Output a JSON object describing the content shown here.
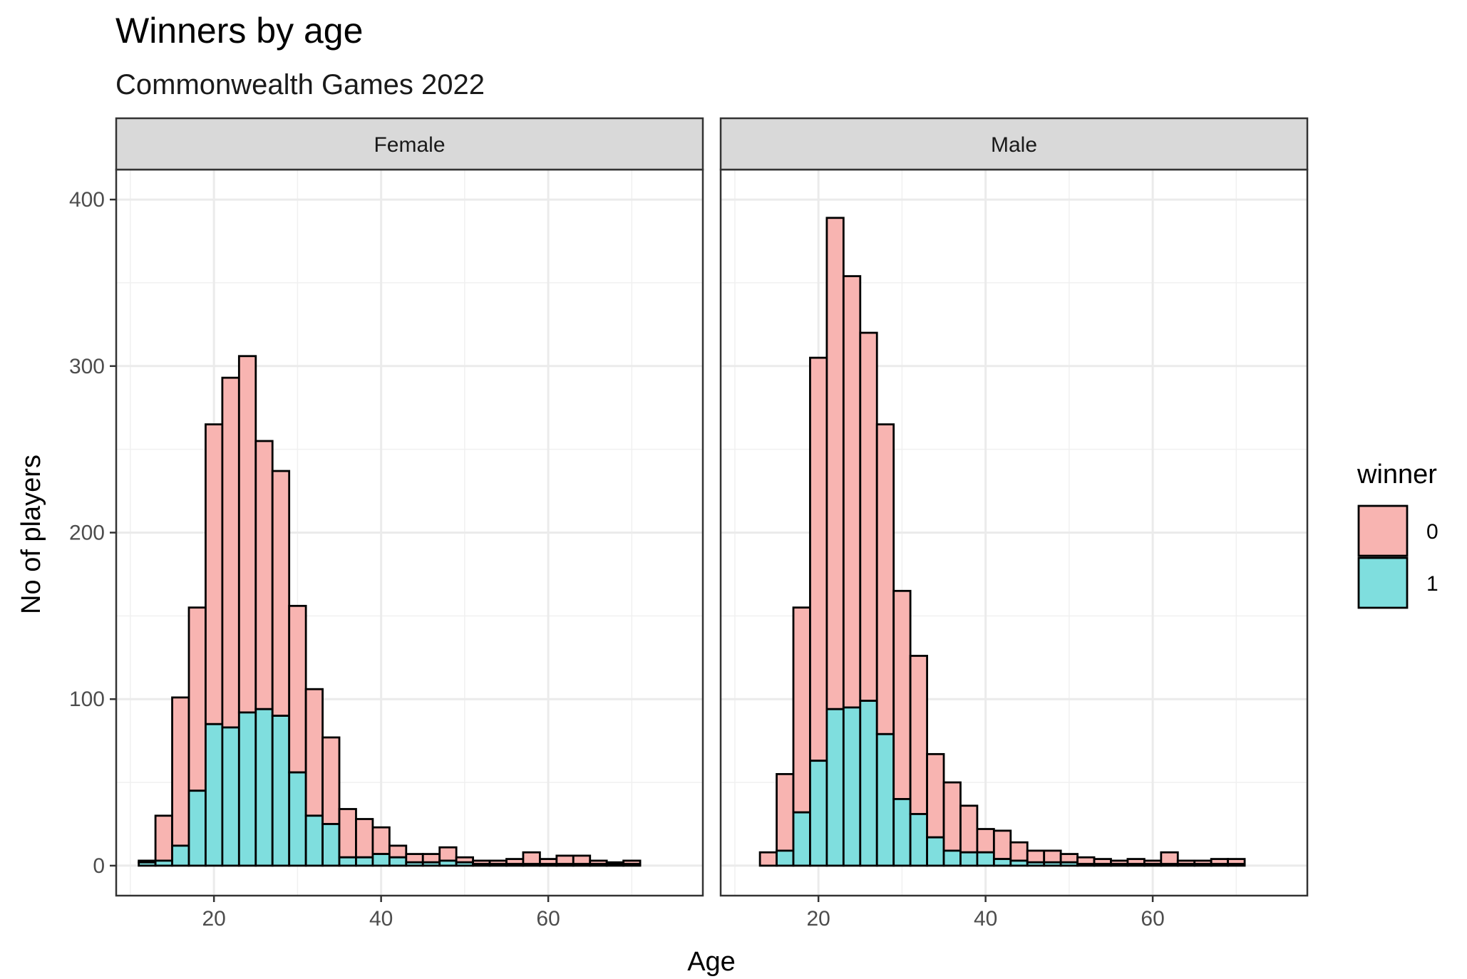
{
  "chart_data": {
    "type": "bar",
    "title": "Winners by age",
    "subtitle": "Commonwealth Games 2022",
    "xlabel": "Age",
    "ylabel": "No of players",
    "xlim": [
      8.3,
      78.5
    ],
    "ylim": [
      -18,
      418
    ],
    "x_ticks": [
      20,
      40,
      60
    ],
    "y_ticks": [
      0,
      100,
      200,
      300,
      400
    ],
    "grid": true,
    "stacked": true,
    "legend": {
      "title": "winner",
      "position": "right",
      "entries": [
        {
          "label": "0",
          "color": "#F8B4B1"
        },
        {
          "label": "1",
          "color": "#7FDEDE"
        }
      ]
    },
    "colors": {
      "0": "#F8B4B1",
      "1": "#7FDEDE",
      "outline": "#000000"
    },
    "bins": {
      "start": 11,
      "width": 2.0
    },
    "panels": [
      {
        "name": "Female",
        "series": [
          {
            "name": "0",
            "values": [
              1,
              27,
              89,
              110,
              180,
              210,
              214,
              161,
              147,
              100,
              76,
              52,
              29,
              23,
              16,
              7,
              5,
              5,
              8,
              3,
              2,
              2,
              3,
              7,
              3,
              5,
              5,
              2,
              1,
              2
            ]
          },
          {
            "name": "1",
            "values": [
              2,
              3,
              12,
              45,
              85,
              83,
              92,
              94,
              90,
              56,
              30,
              25,
              5,
              5,
              7,
              5,
              2,
              2,
              3,
              2,
              1,
              1,
              1,
              1,
              1,
              1,
              1,
              1,
              1,
              1
            ]
          }
        ]
      },
      {
        "name": "Male",
        "series": [
          {
            "name": "0",
            "values": [
              0,
              8,
              46,
              123,
              242,
              295,
              259,
              221,
              186,
              125,
              95,
              50,
              41,
              28,
              14,
              17,
              11,
              7,
              7,
              5,
              4,
              3,
              2,
              3,
              2,
              7,
              2,
              2,
              3,
              3
            ]
          },
          {
            "name": "1",
            "values": [
              0,
              0,
              9,
              32,
              63,
              94,
              95,
              99,
              79,
              40,
              31,
              17,
              9,
              8,
              8,
              4,
              3,
              2,
              2,
              2,
              1,
              1,
              1,
              1,
              1,
              1,
              1,
              1,
              1,
              1
            ]
          }
        ]
      }
    ]
  }
}
